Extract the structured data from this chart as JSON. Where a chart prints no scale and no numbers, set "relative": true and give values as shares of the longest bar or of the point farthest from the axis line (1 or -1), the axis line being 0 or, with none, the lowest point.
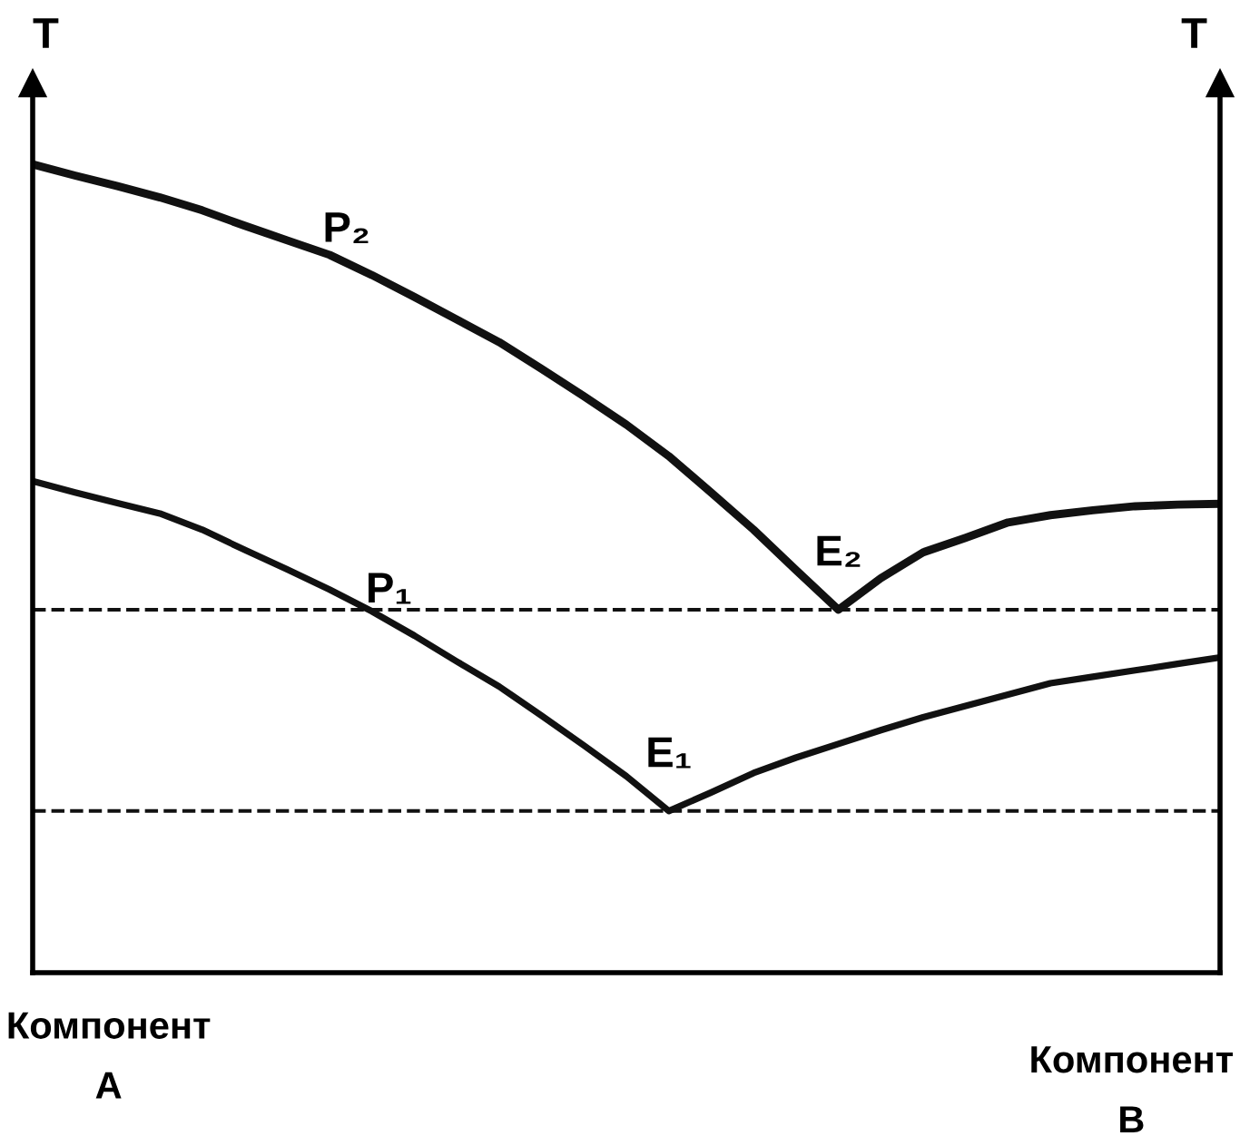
{
  "chart_data": {
    "type": "line",
    "relative": true,
    "ylabel": "T",
    "y2label": "T",
    "legend": false,
    "marker": "none",
    "line_style": "solid",
    "categories": [
      null,
      null,
      null,
      null,
      null,
      null,
      null,
      null,
      null,
      null,
      null,
      null,
      null,
      null,
      null,
      null,
      null,
      null,
      null,
      null,
      null,
      null,
      null,
      null,
      null,
      null,
      null,
      null,
      null
    ],
    "series": [
      {
        "name": "P₂",
        "color": "#111111",
        "values": [
          1,
          0.986,
          0.973,
          0.959,
          0.943,
          0.924,
          0.906,
          0.888,
          0.863,
          0.836,
          0.808,
          0.78,
          0.747,
          0.713,
          0.678,
          0.639,
          0.594,
          0.548,
          0.498,
          0.449,
          0.488,
          0.52,
          0.538,
          0.557,
          0.566,
          0.572,
          0.577,
          0.579,
          0.58
        ]
      },
      {
        "name": "P₁",
        "color": "#111111",
        "values": [
          0.608,
          0.594,
          0.581,
          0.568,
          0.548,
          0.523,
          0.499,
          0.474,
          0.447,
          0.417,
          0.385,
          0.354,
          0.318,
          0.281,
          0.243,
          0.2,
          0.223,
          0.247,
          0.266,
          0.283,
          0.3,
          0.316,
          0.33,
          0.344,
          0.358,
          0.366,
          0.374,
          0.382,
          0.39
        ]
      }
    ],
    "ref_lines": [
      {
        "axis": "y",
        "value": 0.449,
        "line_style": "dashed",
        "color": "#111111"
      },
      {
        "axis": "y",
        "value": 0.2,
        "line_style": "dashed",
        "color": "#111111"
      }
    ],
    "annotations": [
      {
        "text": "E₂",
        "y": 0.449
      },
      {
        "text": "E₁",
        "y": 0.2
      },
      "Компонент\nA",
      "Компонент\nB"
    ]
  }
}
